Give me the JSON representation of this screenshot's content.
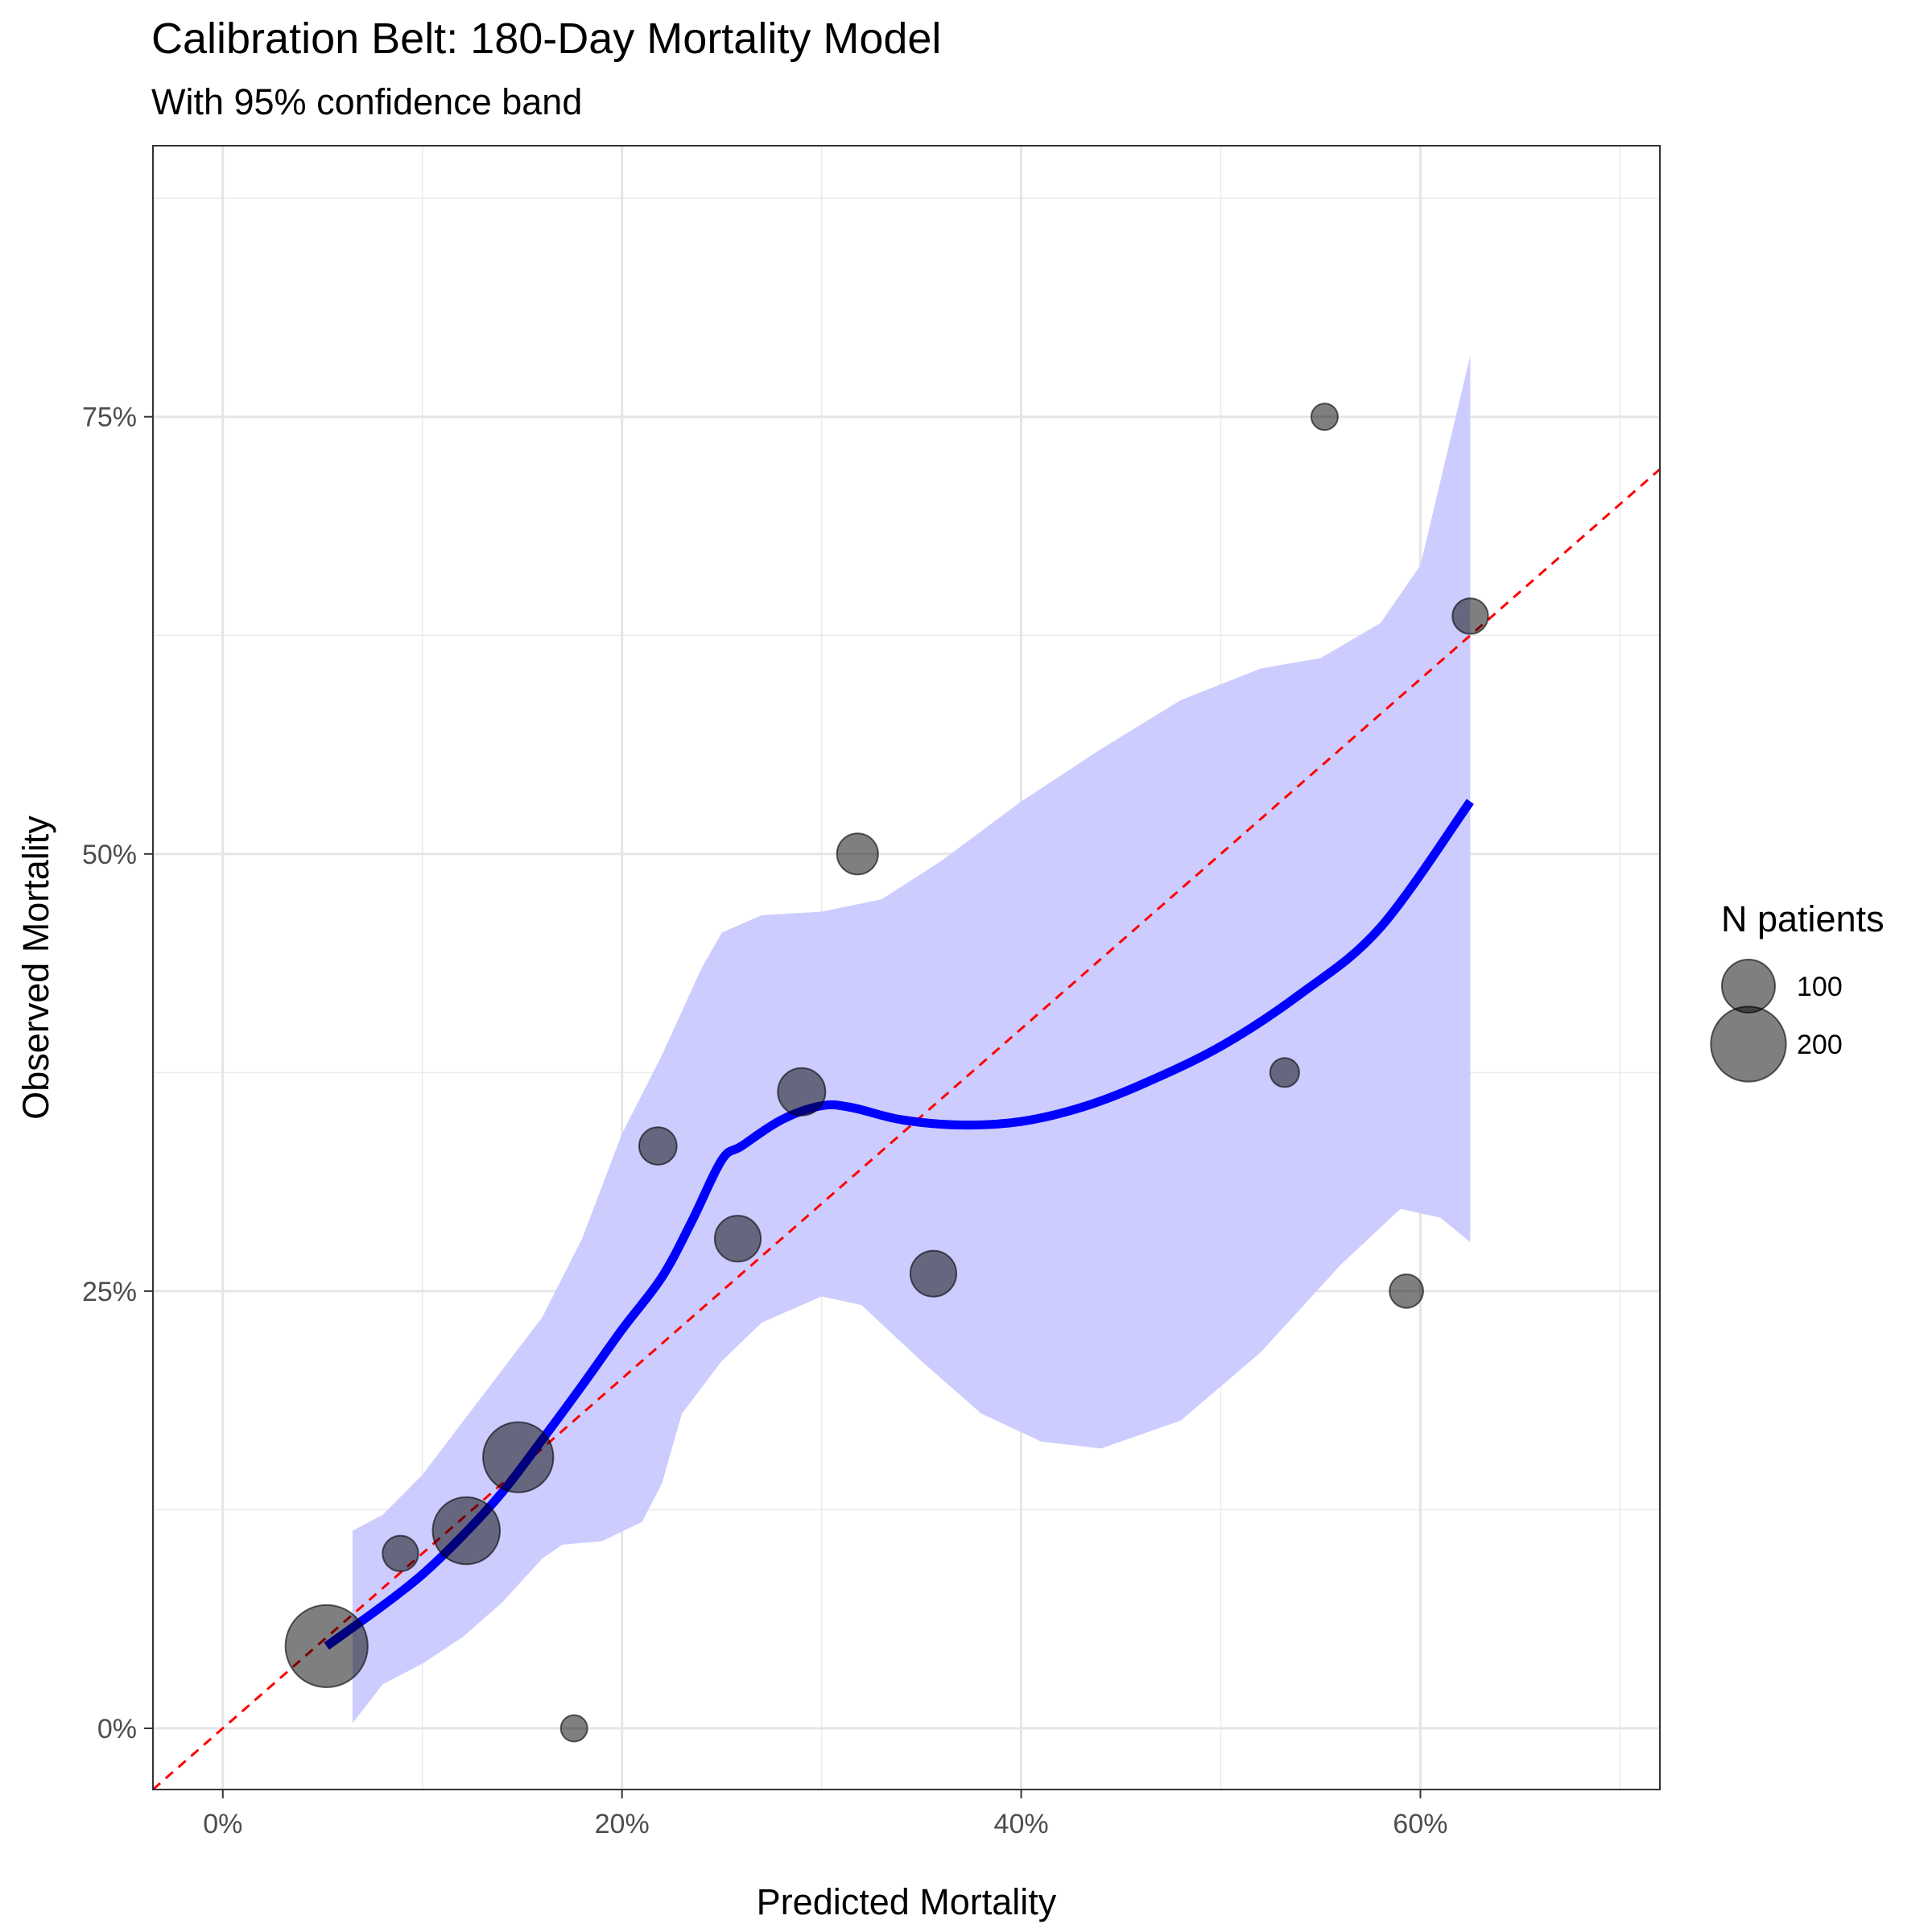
{
  "chart_data": {
    "type": "scatter",
    "title": "Calibration Belt: 180-Day Mortality Model",
    "subtitle": "With 95% confidence band",
    "xlabel": "Predicted Mortality",
    "ylabel": "Observed Mortality",
    "xlim": [
      -0.035,
      0.72
    ],
    "ylim": [
      -0.035,
      0.905
    ],
    "x_ticks": [
      0,
      0.2,
      0.4,
      0.6
    ],
    "x_tick_labels": [
      "0%",
      "20%",
      "40%",
      "60%"
    ],
    "y_ticks": [
      0,
      0.25,
      0.5,
      0.75
    ],
    "y_tick_labels": [
      "0%",
      "25%",
      "50%",
      "75%"
    ],
    "grid": true,
    "legend_position": "right",
    "legend": {
      "title": "N patients",
      "entries": [
        {
          "label": "100",
          "size": 100
        },
        {
          "label": "200",
          "size": 200
        }
      ]
    },
    "points": [
      {
        "x": 0.052,
        "y": 0.047,
        "n": 240
      },
      {
        "x": 0.089,
        "y": 0.1,
        "n": 45
      },
      {
        "x": 0.122,
        "y": 0.113,
        "n": 160
      },
      {
        "x": 0.148,
        "y": 0.155,
        "n": 175
      },
      {
        "x": 0.176,
        "y": 0.0,
        "n": 25
      },
      {
        "x": 0.218,
        "y": 0.333,
        "n": 50
      },
      {
        "x": 0.258,
        "y": 0.28,
        "n": 75
      },
      {
        "x": 0.29,
        "y": 0.364,
        "n": 80
      },
      {
        "x": 0.318,
        "y": 0.5,
        "n": 60
      },
      {
        "x": 0.356,
        "y": 0.26,
        "n": 75
      },
      {
        "x": 0.532,
        "y": 0.375,
        "n": 30
      },
      {
        "x": 0.552,
        "y": 0.75,
        "n": 25
      },
      {
        "x": 0.593,
        "y": 0.25,
        "n": 40
      },
      {
        "x": 0.625,
        "y": 0.636,
        "n": 45
      }
    ],
    "calibration_curve": {
      "color": "#0000ff",
      "points": [
        [
          0.052,
          0.047
        ],
        [
          0.08,
          0.07
        ],
        [
          0.1,
          0.088
        ],
        [
          0.12,
          0.11
        ],
        [
          0.14,
          0.135
        ],
        [
          0.16,
          0.165
        ],
        [
          0.18,
          0.196
        ],
        [
          0.2,
          0.228
        ],
        [
          0.22,
          0.258
        ],
        [
          0.235,
          0.29
        ],
        [
          0.25,
          0.325
        ],
        [
          0.26,
          0.333
        ],
        [
          0.28,
          0.348
        ],
        [
          0.3,
          0.356
        ],
        [
          0.315,
          0.355
        ],
        [
          0.34,
          0.348
        ],
        [
          0.37,
          0.345
        ],
        [
          0.4,
          0.347
        ],
        [
          0.43,
          0.355
        ],
        [
          0.46,
          0.368
        ],
        [
          0.5,
          0.39
        ],
        [
          0.54,
          0.42
        ],
        [
          0.58,
          0.458
        ],
        [
          0.625,
          0.53
        ]
      ]
    },
    "confidence_band": {
      "color": "#ccccff",
      "upper": [
        [
          0.065,
          0.113
        ],
        [
          0.08,
          0.122
        ],
        [
          0.1,
          0.145
        ],
        [
          0.12,
          0.175
        ],
        [
          0.14,
          0.205
        ],
        [
          0.16,
          0.235
        ],
        [
          0.18,
          0.28
        ],
        [
          0.2,
          0.34
        ],
        [
          0.22,
          0.385
        ],
        [
          0.24,
          0.435
        ],
        [
          0.25,
          0.455
        ],
        [
          0.27,
          0.465
        ],
        [
          0.3,
          0.467
        ],
        [
          0.33,
          0.474
        ],
        [
          0.36,
          0.496
        ],
        [
          0.4,
          0.53
        ],
        [
          0.44,
          0.56
        ],
        [
          0.48,
          0.588
        ],
        [
          0.52,
          0.606
        ],
        [
          0.55,
          0.612
        ],
        [
          0.58,
          0.632
        ],
        [
          0.6,
          0.665
        ],
        [
          0.625,
          0.785
        ]
      ],
      "lower": [
        [
          0.065,
          0.003
        ],
        [
          0.08,
          0.025
        ],
        [
          0.1,
          0.037
        ],
        [
          0.12,
          0.052
        ],
        [
          0.14,
          0.072
        ],
        [
          0.16,
          0.097
        ],
        [
          0.17,
          0.105
        ],
        [
          0.19,
          0.107
        ],
        [
          0.21,
          0.118
        ],
        [
          0.22,
          0.14
        ],
        [
          0.23,
          0.18
        ],
        [
          0.25,
          0.21
        ],
        [
          0.27,
          0.232
        ],
        [
          0.3,
          0.247
        ],
        [
          0.32,
          0.242
        ],
        [
          0.35,
          0.21
        ],
        [
          0.38,
          0.18
        ],
        [
          0.41,
          0.164
        ],
        [
          0.44,
          0.16
        ],
        [
          0.48,
          0.176
        ],
        [
          0.52,
          0.215
        ],
        [
          0.56,
          0.265
        ],
        [
          0.59,
          0.297
        ],
        [
          0.61,
          0.292
        ],
        [
          0.625,
          0.278
        ]
      ]
    },
    "reference_line": {
      "slope": 1,
      "intercept": 0,
      "color": "#ff0000",
      "style": "dashed"
    }
  }
}
